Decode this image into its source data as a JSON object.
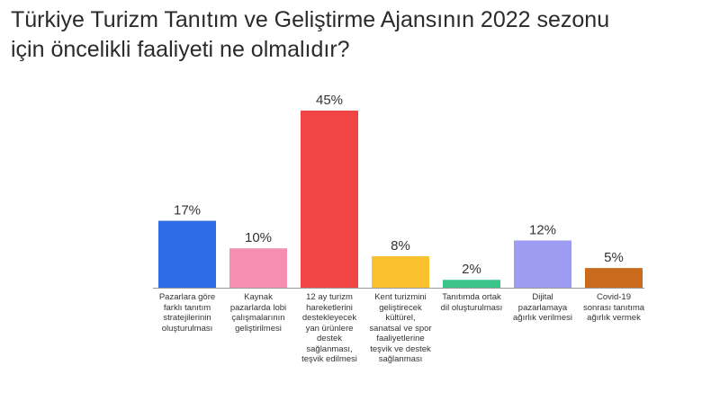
{
  "title_lines": [
    "Türkiye Turizm Tanıtım ve Geliştirme Ajansının 2022 sezonu",
    "için öncelikli faaliyeti ne olmalıdır?"
  ],
  "chart_data": {
    "type": "bar",
    "title": "Türkiye Turizm Tanıtım ve Geliştirme Ajansının 2022 sezonu için öncelikli faaliyeti ne olmalıdır?",
    "categories": [
      "Pazarlara göre farklı tanıtım stratejilerinin oluşturulması",
      "Kaynak pazarlarda lobi çalışmalarının geliştirilmesi",
      "12 ay turizm hareketlerini destekleyecek yan ürünlere destek sağlanması, teşvik edilmesi",
      "Kent turizmini geliştirecek kültürel, sanatsal ve spor faaliyetlerine teşvik ve destek sağlanması",
      "Tanıtımda ortak dil oluşturulması",
      "Dijital pazarlamaya ağırlık verilmesi",
      "Covid-19 sonrası tanıtıma ağırlık vermek"
    ],
    "values": [
      17,
      10,
      45,
      8,
      2,
      12,
      5
    ],
    "data_labels": [
      "17%",
      "10%",
      "45%",
      "8%",
      "2%",
      "12%",
      "5%"
    ],
    "colors": [
      "#2d6be6",
      "#f48fb1",
      "#f14545",
      "#f9c22e",
      "#3cc58a",
      "#9c9cf2",
      "#c96a1c"
    ],
    "xlabel": "",
    "ylabel": "",
    "ylim": [
      0,
      45
    ],
    "grid": false,
    "legend": "none"
  }
}
